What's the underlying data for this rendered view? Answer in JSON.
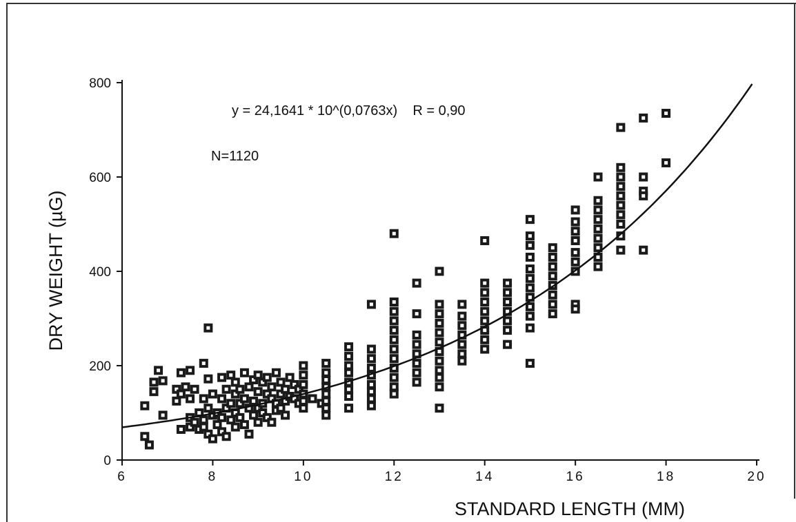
{
  "chart_data": {
    "type": "scatter",
    "xlabel": "STANDARD LENGTH (MM)",
    "ylabel": "DRY WEIGHT (µG)",
    "xlim": [
      6,
      20
    ],
    "ylim": [
      0,
      800
    ],
    "x_ticks": [
      6,
      8,
      10,
      12,
      14,
      16,
      18,
      20
    ],
    "y_ticks": [
      0,
      200,
      400,
      600,
      800
    ],
    "x_tick_labels": [
      "6",
      "8",
      "10",
      "12",
      "14",
      "16",
      "18",
      "20"
    ],
    "y_tick_labels": [
      "0",
      "200",
      "400",
      "600",
      "800"
    ],
    "grid": false,
    "annotations": {
      "equation": "y = 24,1641 * 10^(0,0763x)    R = 0,90",
      "n": "N=1120"
    },
    "fit": {
      "a": 24.1641,
      "b": 0.0763,
      "x_from": 6,
      "x_to": 19.9
    },
    "points": [
      [
        6.5,
        115
      ],
      [
        6.5,
        50
      ],
      [
        6.6,
        32
      ],
      [
        6.7,
        165
      ],
      [
        6.7,
        145
      ],
      [
        6.8,
        190
      ],
      [
        6.9,
        168
      ],
      [
        6.9,
        95
      ],
      [
        7.2,
        150
      ],
      [
        7.2,
        125
      ],
      [
        7.3,
        185
      ],
      [
        7.3,
        140
      ],
      [
        7.3,
        65
      ],
      [
        7.4,
        155
      ],
      [
        7.5,
        190
      ],
      [
        7.5,
        130
      ],
      [
        7.5,
        90
      ],
      [
        7.5,
        70
      ],
      [
        7.6,
        80
      ],
      [
        7.6,
        150
      ],
      [
        7.7,
        100
      ],
      [
        7.7,
        65
      ],
      [
        7.8,
        205
      ],
      [
        7.8,
        130
      ],
      [
        7.8,
        85
      ],
      [
        7.8,
        70
      ],
      [
        7.9,
        280
      ],
      [
        7.9,
        110
      ],
      [
        7.9,
        55
      ],
      [
        7.9,
        172
      ],
      [
        8.0,
        45
      ],
      [
        8.0,
        95
      ],
      [
        8.0,
        140
      ],
      [
        8.1,
        75
      ],
      [
        8.1,
        100
      ],
      [
        8.2,
        175
      ],
      [
        8.2,
        130
      ],
      [
        8.2,
        90
      ],
      [
        8.2,
        60
      ],
      [
        8.3,
        110
      ],
      [
        8.3,
        150
      ],
      [
        8.3,
        50
      ],
      [
        8.4,
        180
      ],
      [
        8.4,
        120
      ],
      [
        8.4,
        85
      ],
      [
        8.5,
        165
      ],
      [
        8.5,
        140
      ],
      [
        8.5,
        100
      ],
      [
        8.5,
        70
      ],
      [
        8.6,
        150
      ],
      [
        8.6,
        120
      ],
      [
        8.6,
        90
      ],
      [
        8.7,
        185
      ],
      [
        8.7,
        130
      ],
      [
        8.7,
        75
      ],
      [
        8.8,
        110
      ],
      [
        8.8,
        155
      ],
      [
        8.8,
        55
      ],
      [
        8.9,
        170
      ],
      [
        8.9,
        125
      ],
      [
        8.9,
        95
      ],
      [
        9.0,
        180
      ],
      [
        9.0,
        145
      ],
      [
        9.0,
        110
      ],
      [
        9.0,
        80
      ],
      [
        9.1,
        165
      ],
      [
        9.1,
        120
      ],
      [
        9.1,
        100
      ],
      [
        9.2,
        175
      ],
      [
        9.2,
        140
      ],
      [
        9.2,
        90
      ],
      [
        9.3,
        130
      ],
      [
        9.3,
        155
      ],
      [
        9.3,
        80
      ],
      [
        9.4,
        185
      ],
      [
        9.4,
        120
      ],
      [
        9.4,
        105
      ],
      [
        9.5,
        165
      ],
      [
        9.5,
        140
      ],
      [
        9.5,
        110
      ],
      [
        9.6,
        150
      ],
      [
        9.6,
        125
      ],
      [
        9.6,
        95
      ],
      [
        9.7,
        175
      ],
      [
        9.7,
        135
      ],
      [
        9.8,
        160
      ],
      [
        9.8,
        130
      ],
      [
        9.9,
        150
      ],
      [
        9.9,
        120
      ],
      [
        10.0,
        200
      ],
      [
        10.0,
        180
      ],
      [
        10.0,
        160
      ],
      [
        10.0,
        140
      ],
      [
        10.0,
        125
      ],
      [
        10.0,
        110
      ],
      [
        10.2,
        130
      ],
      [
        10.4,
        120
      ],
      [
        10.5,
        205
      ],
      [
        10.5,
        185
      ],
      [
        10.5,
        170
      ],
      [
        10.5,
        155
      ],
      [
        10.5,
        140
      ],
      [
        10.5,
        125
      ],
      [
        10.5,
        110
      ],
      [
        10.5,
        95
      ],
      [
        11.0,
        240
      ],
      [
        11.0,
        220
      ],
      [
        11.0,
        200
      ],
      [
        11.0,
        185
      ],
      [
        11.0,
        165
      ],
      [
        11.0,
        150
      ],
      [
        11.0,
        135
      ],
      [
        11.0,
        110
      ],
      [
        11.5,
        330
      ],
      [
        11.5,
        235
      ],
      [
        11.5,
        215
      ],
      [
        11.5,
        195
      ],
      [
        11.5,
        180
      ],
      [
        11.5,
        160
      ],
      [
        11.5,
        145
      ],
      [
        11.5,
        130
      ],
      [
        11.5,
        115
      ],
      [
        12.0,
        480
      ],
      [
        12.0,
        335
      ],
      [
        12.0,
        315
      ],
      [
        12.0,
        295
      ],
      [
        12.0,
        275
      ],
      [
        12.0,
        255
      ],
      [
        12.0,
        235
      ],
      [
        12.0,
        215
      ],
      [
        12.0,
        195
      ],
      [
        12.0,
        175
      ],
      [
        12.0,
        155
      ],
      [
        12.0,
        140
      ],
      [
        12.5,
        375
      ],
      [
        12.5,
        310
      ],
      [
        12.5,
        265
      ],
      [
        12.5,
        245
      ],
      [
        12.5,
        225
      ],
      [
        12.5,
        205
      ],
      [
        12.5,
        185
      ],
      [
        12.5,
        165
      ],
      [
        13.0,
        400
      ],
      [
        13.0,
        330
      ],
      [
        13.0,
        310
      ],
      [
        13.0,
        290
      ],
      [
        13.0,
        270
      ],
      [
        13.0,
        250
      ],
      [
        13.0,
        230
      ],
      [
        13.0,
        210
      ],
      [
        13.0,
        190
      ],
      [
        13.0,
        175
      ],
      [
        13.0,
        155
      ],
      [
        13.0,
        110
      ],
      [
        13.5,
        330
      ],
      [
        13.5,
        305
      ],
      [
        13.5,
        285
      ],
      [
        13.5,
        265
      ],
      [
        13.5,
        245
      ],
      [
        13.5,
        225
      ],
      [
        13.5,
        210
      ],
      [
        14.0,
        465
      ],
      [
        14.0,
        375
      ],
      [
        14.0,
        355
      ],
      [
        14.0,
        335
      ],
      [
        14.0,
        315
      ],
      [
        14.0,
        295
      ],
      [
        14.0,
        275
      ],
      [
        14.0,
        255
      ],
      [
        14.0,
        235
      ],
      [
        14.5,
        375
      ],
      [
        14.5,
        355
      ],
      [
        14.5,
        335
      ],
      [
        14.5,
        315
      ],
      [
        14.5,
        295
      ],
      [
        14.5,
        275
      ],
      [
        14.5,
        245
      ],
      [
        15.0,
        510
      ],
      [
        15.0,
        475
      ],
      [
        15.0,
        455
      ],
      [
        15.0,
        430
      ],
      [
        15.0,
        405
      ],
      [
        15.0,
        385
      ],
      [
        15.0,
        365
      ],
      [
        15.0,
        345
      ],
      [
        15.0,
        325
      ],
      [
        15.0,
        305
      ],
      [
        15.0,
        280
      ],
      [
        15.0,
        205
      ],
      [
        15.5,
        450
      ],
      [
        15.5,
        430
      ],
      [
        15.5,
        410
      ],
      [
        15.5,
        390
      ],
      [
        15.5,
        370
      ],
      [
        15.5,
        350
      ],
      [
        15.5,
        330
      ],
      [
        15.5,
        310
      ],
      [
        16.0,
        530
      ],
      [
        16.0,
        505
      ],
      [
        16.0,
        485
      ],
      [
        16.0,
        465
      ],
      [
        16.0,
        440
      ],
      [
        16.0,
        420
      ],
      [
        16.0,
        400
      ],
      [
        16.0,
        330
      ],
      [
        16.0,
        320
      ],
      [
        16.5,
        600
      ],
      [
        16.5,
        550
      ],
      [
        16.5,
        530
      ],
      [
        16.5,
        510
      ],
      [
        16.5,
        490
      ],
      [
        16.5,
        470
      ],
      [
        16.5,
        450
      ],
      [
        16.5,
        430
      ],
      [
        16.5,
        410
      ],
      [
        17.0,
        705
      ],
      [
        17.0,
        620
      ],
      [
        17.0,
        600
      ],
      [
        17.0,
        580
      ],
      [
        17.0,
        560
      ],
      [
        17.0,
        540
      ],
      [
        17.0,
        520
      ],
      [
        17.0,
        500
      ],
      [
        17.0,
        475
      ],
      [
        17.0,
        445
      ],
      [
        17.5,
        725
      ],
      [
        17.5,
        600
      ],
      [
        17.5,
        570
      ],
      [
        17.5,
        560
      ],
      [
        17.5,
        445
      ],
      [
        18.0,
        735
      ],
      [
        18.0,
        630
      ]
    ]
  }
}
